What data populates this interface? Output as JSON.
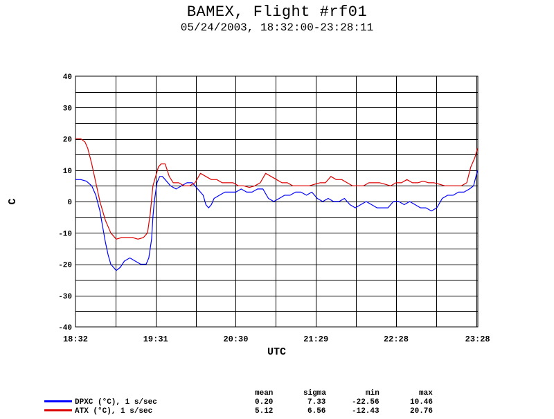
{
  "title": "BAMEX, Flight #rf01",
  "subtitle": "05/24/2003, 18:32:00-23:28:11",
  "chart_data": {
    "type": "line",
    "xlabel": "UTC",
    "ylabel": "C",
    "xlim": [
      0,
      296.18
    ],
    "ylim": [
      -40,
      40
    ],
    "y_ticks": [
      40,
      30,
      20,
      10,
      0,
      -10,
      -20,
      -30,
      -40
    ],
    "x_ticks": [
      {
        "t": 0,
        "label": "18:32"
      },
      {
        "t": 59,
        "label": "19:31"
      },
      {
        "t": 118,
        "label": "20:30"
      },
      {
        "t": 177,
        "label": "21:29"
      },
      {
        "t": 236,
        "label": "22:28"
      },
      {
        "t": 296,
        "label": "23:28"
      }
    ],
    "grid": true,
    "series": [
      {
        "name": "DPXC (°C), 1 s/sec",
        "color": "#0000ff",
        "x": [
          0,
          4,
          8,
          12,
          15,
          18,
          20,
          22,
          24,
          26,
          28,
          30,
          33,
          36,
          40,
          44,
          48,
          52,
          54,
          56,
          57,
          58,
          60,
          62,
          64,
          66,
          70,
          74,
          78,
          82,
          86,
          90,
          94,
          96,
          98,
          100,
          102,
          106,
          110,
          114,
          118,
          122,
          126,
          130,
          134,
          138,
          142,
          146,
          150,
          154,
          158,
          162,
          166,
          170,
          174,
          178,
          182,
          186,
          190,
          194,
          198,
          202,
          206,
          210,
          214,
          218,
          222,
          226,
          230,
          234,
          238,
          242,
          246,
          250,
          254,
          258,
          262,
          266,
          270,
          274,
          278,
          282,
          286,
          290,
          293,
          296
        ],
        "y": [
          7,
          7,
          6.5,
          5,
          2,
          -3,
          -8,
          -13,
          -17,
          -20,
          -21,
          -22,
          -21,
          -19,
          -18,
          -19,
          -20,
          -20,
          -18,
          -12,
          -5,
          0,
          6,
          8,
          8,
          7,
          5,
          4,
          5,
          6,
          6,
          4,
          2,
          -1,
          -2,
          -1,
          1,
          2,
          3,
          3,
          3,
          4,
          3,
          3,
          4,
          4,
          1,
          0,
          1,
          2,
          2,
          3,
          3,
          2,
          3,
          1,
          0,
          1,
          0,
          0,
          1,
          -1,
          -2,
          -1,
          0,
          -1,
          -2,
          -2,
          -2,
          0,
          0,
          -1,
          0,
          -1,
          -2,
          -2,
          -3,
          -2,
          1,
          2,
          2,
          3,
          3,
          4,
          5,
          10
        ]
      },
      {
        "name": "ATX (°C), 1 s/sec",
        "color": "#dd0000",
        "x": [
          0,
          4,
          7,
          9,
          12,
          15,
          18,
          20,
          22,
          24,
          26,
          28,
          30,
          34,
          38,
          42,
          46,
          50,
          53,
          55,
          57,
          59,
          61,
          63,
          66,
          69,
          72,
          76,
          80,
          84,
          88,
          92,
          96,
          100,
          104,
          108,
          112,
          116,
          120,
          124,
          128,
          132,
          136,
          140,
          144,
          148,
          152,
          156,
          160,
          164,
          168,
          172,
          176,
          180,
          184,
          188,
          192,
          196,
          200,
          204,
          208,
          212,
          216,
          220,
          224,
          228,
          232,
          236,
          240,
          244,
          248,
          252,
          256,
          260,
          264,
          268,
          272,
          276,
          280,
          284,
          288,
          291,
          294,
          296
        ],
        "y": [
          20,
          20,
          19,
          17,
          12,
          6,
          0,
          -3,
          -6,
          -8,
          -10,
          -11,
          -12,
          -11.5,
          -11.5,
          -11.5,
          -12,
          -11.5,
          -10,
          -4,
          5,
          8,
          11,
          12,
          12,
          8,
          6,
          6,
          5,
          5,
          6,
          9,
          8,
          7,
          7,
          6,
          6,
          6,
          5,
          5,
          4.5,
          5,
          6,
          9,
          8,
          7,
          6,
          6,
          5,
          5,
          5,
          5,
          5.5,
          6,
          6,
          8,
          7,
          7,
          6,
          5,
          5,
          5,
          6,
          6,
          6,
          5.5,
          5,
          6,
          6,
          7,
          6,
          6,
          6.5,
          6,
          6,
          5.5,
          5,
          5,
          5,
          5,
          6,
          11,
          14,
          17
        ]
      }
    ]
  },
  "stats_table": {
    "headers": [
      "mean",
      "sigma",
      "min",
      "max"
    ],
    "rows": [
      {
        "label": "DPXC (°C), 1 s/sec",
        "color": "#0000ff",
        "mean": "0.20",
        "sigma": "7.33",
        "min": "-22.56",
        "max": "10.46"
      },
      {
        "label": "ATX (°C), 1 s/sec",
        "color": "#dd0000",
        "mean": "5.12",
        "sigma": "6.56",
        "min": "-12.43",
        "max": "20.76"
      }
    ]
  }
}
